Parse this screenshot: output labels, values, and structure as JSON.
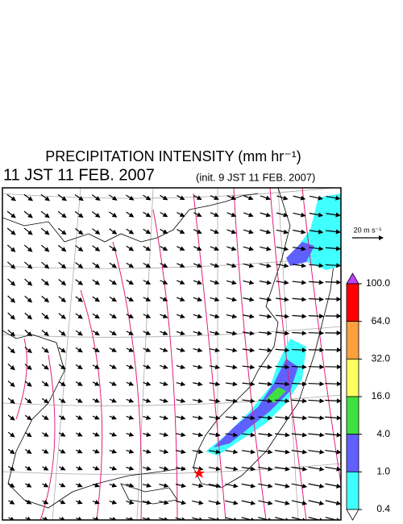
{
  "header": {
    "title": "PRECIPITATION INTENSITY (mm hr⁻¹)",
    "valid_time": "11 JST 11 FEB. 2007",
    "init_time": "(init. 9 JST 11 FEB. 2007)"
  },
  "reference_vector": {
    "label": "20 m s⁻¹"
  },
  "colorbar": {
    "levels": [
      {
        "value": 100,
        "label": "100.0"
      },
      {
        "value": 64,
        "label": "64.0"
      },
      {
        "value": 32,
        "label": "32.0"
      },
      {
        "value": 16,
        "label": "16.0"
      },
      {
        "value": 4,
        "label": "4.0"
      },
      {
        "value": 1,
        "label": "1.0"
      },
      {
        "value": 0.4,
        "label": "0.4"
      }
    ],
    "colors": [
      "#c040ff",
      "#ff0000",
      "#ffa040",
      "#ffff60",
      "#40e040",
      "#6060ff",
      "#40ffff",
      "#ffffff"
    ]
  }
}
